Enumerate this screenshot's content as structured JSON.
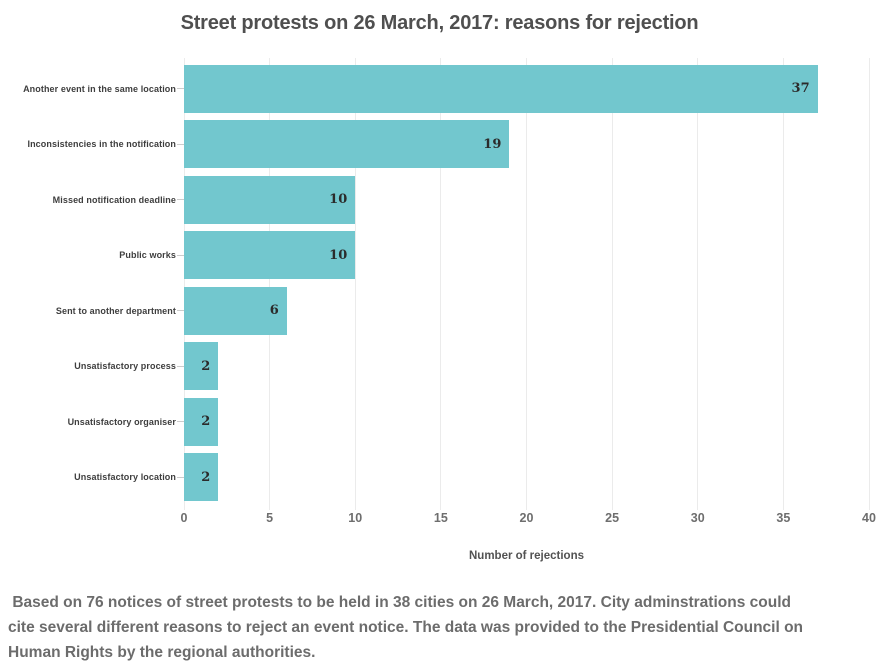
{
  "chart_data": {
    "type": "bar",
    "orientation": "horizontal",
    "title": "Street protests on 26 March, 2017: reasons for rejection",
    "categories": [
      "Another event in the same location",
      "Inconsistencies in the notification",
      "Missed notification deadline",
      "Public works",
      "Sent to another department",
      "Unsatisfactory process",
      "Unsatisfactory organiser",
      "Unsatisfactory location"
    ],
    "values": [
      37,
      19,
      10,
      10,
      6,
      2,
      2,
      2
    ],
    "xlabel": "Number of rejections",
    "ylabel": "",
    "xlim": [
      0,
      40
    ],
    "xticks": [
      0,
      5,
      10,
      15,
      20,
      25,
      30,
      35,
      40
    ],
    "grid": true,
    "legend": false,
    "bar_color": "#72c7ce",
    "value_label_color": "#2b2b2b",
    "grid_color": "#ebebeb"
  },
  "footnote": " Based on 76 notices of street protests to be held in 38 cities on 26 March, 2017. City adminstrations could cite several different reasons to reject an event notice. The data was provided to the Presidential Council on Human Rights by the regional authorities."
}
